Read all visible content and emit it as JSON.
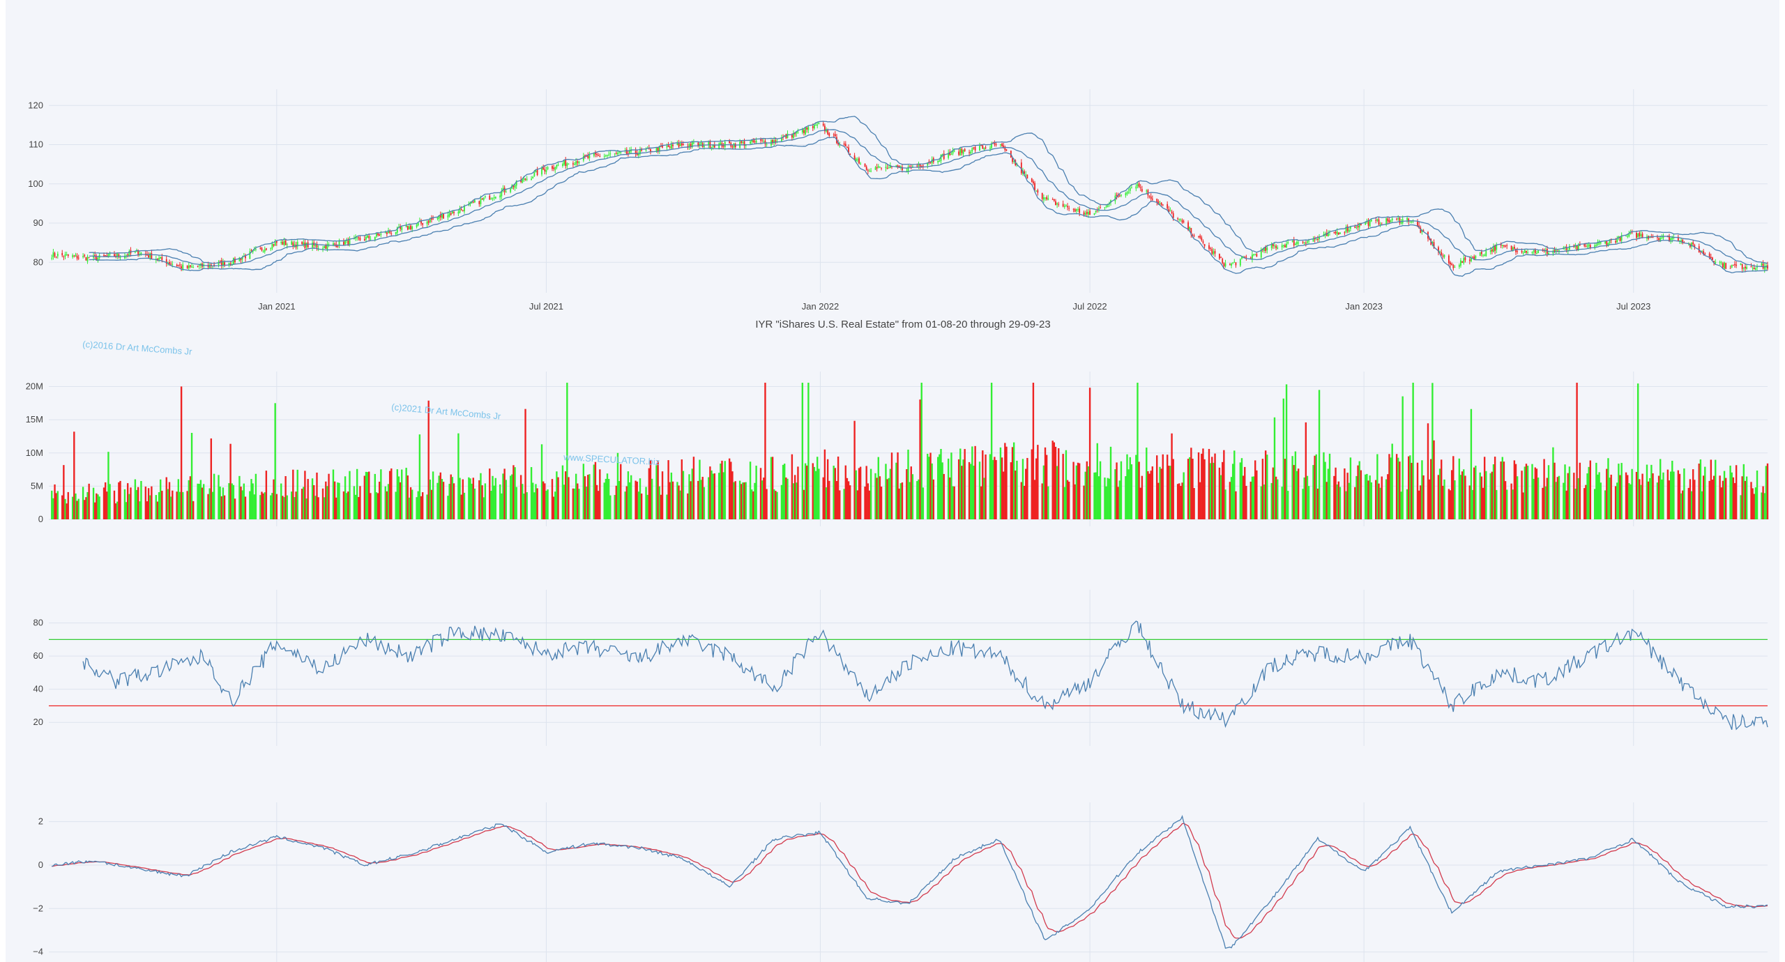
{
  "figure": {
    "title": "IYR \"iShares U.S. Real Estate\" from 01-08-20 through 29-09-23",
    "watermarks": [
      "(c)2016 Dr Art McCombs Jr",
      "(c)2021 Dr Art McCombs Jr",
      "www.SPECULATOR.biz"
    ]
  },
  "colors": {
    "up": "#33ee33",
    "down": "#ee2222",
    "line": "#4a7fb0",
    "band": "#4a7fb0",
    "grid": "#dde3ee",
    "rsi_hi": "#33cc33",
    "rsi_lo": "#ee2222",
    "signal": "#d23a4d"
  },
  "x_ticks": [
    "Jan 2021",
    "Jul 2021",
    "Jan 2022",
    "Jul 2022",
    "Jan 2023",
    "Jul 2023"
  ],
  "chart_data": [
    {
      "type": "candlestick",
      "name": "price",
      "ylim": [
        74,
        122
      ],
      "yticks": [
        80,
        90,
        100,
        110,
        120
      ],
      "close_path": [
        [
          "2020-08-01",
          82
        ],
        [
          "2020-09-01",
          81
        ],
        [
          "2020-10-01",
          82.5
        ],
        [
          "2020-11-01",
          78.5
        ],
        [
          "2020-12-01",
          80
        ],
        [
          "2021-01-01",
          85
        ],
        [
          "2021-02-01",
          84
        ],
        [
          "2021-03-01",
          86
        ],
        [
          "2021-04-01",
          89
        ],
        [
          "2021-05-01",
          93
        ],
        [
          "2021-06-01",
          98
        ],
        [
          "2021-07-01",
          104
        ],
        [
          "2021-08-01",
          107
        ],
        [
          "2021-09-01",
          108
        ],
        [
          "2021-10-01",
          110
        ],
        [
          "2021-11-01",
          110
        ],
        [
          "2021-12-01",
          111
        ],
        [
          "2022-01-01",
          115
        ],
        [
          "2022-02-01",
          104
        ],
        [
          "2022-03-01",
          104
        ],
        [
          "2022-04-01",
          108
        ],
        [
          "2022-05-01",
          110
        ],
        [
          "2022-06-01",
          96
        ],
        [
          "2022-07-01",
          92
        ],
        [
          "2022-08-01",
          100
        ],
        [
          "2022-09-01",
          90
        ],
        [
          "2022-10-01",
          79
        ],
        [
          "2022-11-01",
          84
        ],
        [
          "2022-12-01",
          86
        ],
        [
          "2023-01-01",
          90
        ],
        [
          "2023-02-01",
          91
        ],
        [
          "2023-03-01",
          79
        ],
        [
          "2023-04-01",
          84
        ],
        [
          "2023-05-01",
          82.5
        ],
        [
          "2023-06-01",
          84
        ],
        [
          "2023-07-01",
          87
        ],
        [
          "2023-08-01",
          86
        ],
        [
          "2023-09-01",
          79
        ]
      ]
    },
    {
      "type": "bar",
      "name": "volume",
      "ylim": [
        0,
        21000000
      ],
      "yticks": [
        0,
        5000000,
        10000000,
        15000000,
        20000000
      ],
      "ytick_labels": [
        "0",
        "5M",
        "10M",
        "15M",
        "20M"
      ],
      "base_path": [
        [
          "2020-08-01",
          3500000
        ],
        [
          "2021-01-01",
          5000000
        ],
        [
          "2021-07-01",
          5500000
        ],
        [
          "2022-01-01",
          7000000
        ],
        [
          "2022-06-01",
          8000000
        ],
        [
          "2022-10-01",
          7000000
        ],
        [
          "2023-03-01",
          6500000
        ],
        [
          "2023-09-01",
          6000000
        ]
      ]
    },
    {
      "type": "line",
      "name": "rsi",
      "ylim": [
        10,
        95
      ],
      "yticks": [
        20,
        40,
        60,
        80
      ],
      "hlines": [
        70,
        30
      ],
      "path": [
        [
          "2020-08-22",
          58
        ],
        [
          "2020-09-15",
          45
        ],
        [
          "2020-10-10",
          50
        ],
        [
          "2020-11-15",
          60
        ],
        [
          "2020-12-01",
          32
        ],
        [
          "2021-01-01",
          68
        ],
        [
          "2021-02-01",
          52
        ],
        [
          "2021-03-01",
          70
        ],
        [
          "2021-04-01",
          60
        ],
        [
          "2021-05-01",
          75
        ],
        [
          "2021-06-01",
          72
        ],
        [
          "2021-07-01",
          62
        ],
        [
          "2021-08-01",
          65
        ],
        [
          "2021-09-01",
          58
        ],
        [
          "2021-10-01",
          70
        ],
        [
          "2021-11-01",
          60
        ],
        [
          "2021-12-01",
          40
        ],
        [
          "2022-01-01",
          75
        ],
        [
          "2022-02-01",
          35
        ],
        [
          "2022-03-01",
          55
        ],
        [
          "2022-04-01",
          65
        ],
        [
          "2022-05-01",
          60
        ],
        [
          "2022-06-01",
          30
        ],
        [
          "2022-07-01",
          45
        ],
        [
          "2022-08-01",
          80
        ],
        [
          "2022-09-01",
          30
        ],
        [
          "2022-10-01",
          22
        ],
        [
          "2022-11-01",
          55
        ],
        [
          "2022-12-01",
          62
        ],
        [
          "2023-01-01",
          60
        ],
        [
          "2023-02-01",
          70
        ],
        [
          "2023-03-01",
          30
        ],
        [
          "2023-04-01",
          50
        ],
        [
          "2023-05-01",
          45
        ],
        [
          "2023-06-01",
          60
        ],
        [
          "2023-07-01",
          75
        ],
        [
          "2023-08-01",
          45
        ],
        [
          "2023-09-01",
          20
        ]
      ]
    },
    {
      "type": "line",
      "name": "macd",
      "ylim": [
        -4.3,
        2.5
      ],
      "yticks": [
        -4,
        -2,
        0,
        2
      ],
      "ytick_labels": [
        "−4",
        "−2",
        "0",
        "2"
      ],
      "path": [
        [
          "2020-08-01",
          0
        ],
        [
          "2020-09-01",
          0.2
        ],
        [
          "2020-10-01",
          -0.2
        ],
        [
          "2020-11-01",
          -0.5
        ],
        [
          "2020-12-01",
          0.6
        ],
        [
          "2021-01-01",
          1.3
        ],
        [
          "2021-02-01",
          0.8
        ],
        [
          "2021-03-01",
          0.0
        ],
        [
          "2021-04-01",
          0.5
        ],
        [
          "2021-05-01",
          1.2
        ],
        [
          "2021-06-01",
          1.9
        ],
        [
          "2021-07-01",
          0.6
        ],
        [
          "2021-08-01",
          1.0
        ],
        [
          "2021-09-01",
          0.8
        ],
        [
          "2021-10-01",
          0.3
        ],
        [
          "2021-11-01",
          -1.0
        ],
        [
          "2021-12-01",
          1.2
        ],
        [
          "2022-01-01",
          1.5
        ],
        [
          "2022-02-01",
          -1.5
        ],
        [
          "2022-03-01",
          -1.8
        ],
        [
          "2022-04-01",
          0.3
        ],
        [
          "2022-05-01",
          1.2
        ],
        [
          "2022-06-01",
          -3.5
        ],
        [
          "2022-07-01",
          -2.0
        ],
        [
          "2022-08-01",
          0.5
        ],
        [
          "2022-09-01",
          2.2
        ],
        [
          "2022-10-01",
          -4.0
        ],
        [
          "2022-11-01",
          -1.5
        ],
        [
          "2022-12-01",
          1.2
        ],
        [
          "2023-01-01",
          -0.3
        ],
        [
          "2023-02-01",
          1.7
        ],
        [
          "2023-03-01",
          -2.2
        ],
        [
          "2023-04-01",
          -0.3
        ],
        [
          "2023-05-01",
          0.0
        ],
        [
          "2023-06-01",
          0.3
        ],
        [
          "2023-07-01",
          1.2
        ],
        [
          "2023-08-01",
          -0.8
        ],
        [
          "2023-09-01",
          -1.9
        ]
      ]
    }
  ]
}
